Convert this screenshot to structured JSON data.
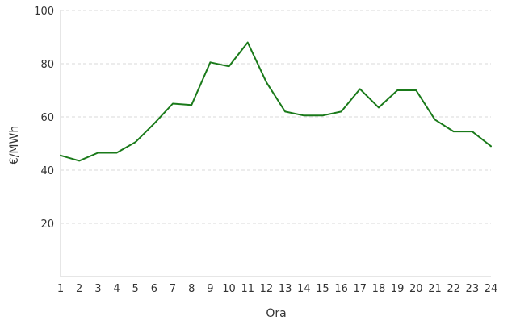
{
  "chart_data": {
    "type": "line",
    "title": "",
    "xlabel": "Ora",
    "ylabel": "€/MWh",
    "categories": [
      "1",
      "2",
      "3",
      "4",
      "5",
      "6",
      "7",
      "8",
      "9",
      "10",
      "11",
      "12",
      "13",
      "14",
      "15",
      "16",
      "17",
      "18",
      "19",
      "20",
      "21",
      "22",
      "23",
      "24"
    ],
    "series": [
      {
        "values": [
          45.5,
          43.5,
          46.5,
          46.5,
          50.5,
          57.5,
          65,
          64.5,
          80.5,
          79,
          88,
          73,
          62,
          60.5,
          60.5,
          62,
          70.5,
          63.5,
          70,
          70,
          59,
          54.5,
          54.5,
          49
        ]
      }
    ],
    "yticks": [
      20,
      40,
      60,
      80,
      100
    ],
    "ylim": [
      0,
      100
    ],
    "grid": true,
    "legend": "none",
    "colors": {
      "line": "#1a7a1a",
      "grid": "#d8d8d8",
      "axis": "#cccccc"
    }
  }
}
